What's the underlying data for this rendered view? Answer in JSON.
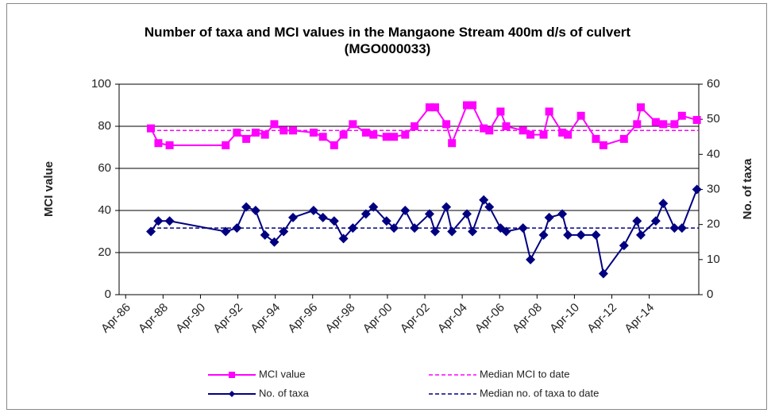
{
  "chart_data": {
    "type": "line",
    "title": "Number of taxa and MCI values in the Mangaone Stream 400m d/s of culvert (MGO000033)",
    "y_label": "MCI value",
    "y2_label": "No. of taxa",
    "x": [
      1987.6,
      1988.0,
      1988.6,
      1991.6,
      1992.2,
      1992.7,
      1993.2,
      1993.7,
      1994.2,
      1994.7,
      1995.2,
      1996.3,
      1996.8,
      1997.4,
      1997.9,
      1998.4,
      1999.1,
      1999.5,
      2000.2,
      2000.6,
      2001.2,
      2001.7,
      2002.5,
      2002.8,
      2003.4,
      2003.7,
      2004.5,
      2004.8,
      2005.4,
      2005.7,
      2006.3,
      2006.6,
      2007.5,
      2007.9,
      2008.6,
      2008.9,
      2009.6,
      2009.9,
      2010.6,
      2011.4,
      2011.8,
      2012.9,
      2013.6,
      2013.8,
      2014.6,
      2015.0,
      2015.6,
      2016.0,
      2016.8
    ],
    "series": [
      {
        "name": "MCI value",
        "color": "#ff00ff",
        "marker": "square",
        "axis": "y",
        "values": [
          79,
          72,
          71,
          71,
          77,
          74,
          77,
          76,
          81,
          78,
          78,
          77,
          75,
          71,
          76,
          81,
          77,
          76,
          75,
          75,
          76,
          80,
          89,
          89,
          81,
          72,
          90,
          90,
          79,
          78,
          87,
          80,
          78,
          76,
          76,
          87,
          77,
          76,
          85,
          74,
          71,
          74,
          81,
          89,
          82,
          81,
          81,
          85,
          83
        ]
      },
      {
        "name": "No. of taxa",
        "color": "#000080",
        "marker": "diamond",
        "axis": "y2",
        "values": [
          18,
          21,
          21,
          18,
          19,
          25,
          24,
          17,
          15,
          18,
          22,
          24,
          22,
          21,
          16,
          19,
          23,
          25,
          21,
          19,
          24,
          19,
          23,
          18,
          25,
          18,
          23,
          18,
          27,
          25,
          19,
          18,
          19,
          10,
          17,
          22,
          23,
          17,
          17,
          17,
          6,
          14,
          21,
          17,
          21,
          26,
          19,
          19,
          30
        ]
      }
    ],
    "reference_lines": [
      {
        "name": "Median MCI to date",
        "color": "#ff00ff",
        "value": 78,
        "axis": "y"
      },
      {
        "name": "Median no. of taxa to date",
        "color": "#000080",
        "value": 19,
        "axis": "y2"
      }
    ],
    "xlim": [
      1985.9,
      2016.9
    ],
    "xticks": [
      {
        "value": 1986.25,
        "label": "Apr-86"
      },
      {
        "value": 1988.25,
        "label": "Apr-88"
      },
      {
        "value": 1990.25,
        "label": "Apr-90"
      },
      {
        "value": 1992.25,
        "label": "Apr-92"
      },
      {
        "value": 1994.25,
        "label": "Apr-94"
      },
      {
        "value": 1996.25,
        "label": "Apr-96"
      },
      {
        "value": 1998.25,
        "label": "Apr-98"
      },
      {
        "value": 2000.25,
        "label": "Apr-00"
      },
      {
        "value": 2002.25,
        "label": "Apr-02"
      },
      {
        "value": 2004.25,
        "label": "Apr-04"
      },
      {
        "value": 2006.25,
        "label": "Apr-06"
      },
      {
        "value": 2008.25,
        "label": "Apr-08"
      },
      {
        "value": 2010.25,
        "label": "Apr-10"
      },
      {
        "value": 2012.25,
        "label": "Apr-12"
      },
      {
        "value": 2014.25,
        "label": "Apr-14"
      }
    ],
    "ylim": [
      0,
      100
    ],
    "yticks": [
      0,
      20,
      40,
      60,
      80,
      100
    ],
    "y2lim": [
      0,
      60
    ],
    "y2ticks": [
      0,
      10,
      20,
      30,
      40,
      50,
      60
    ],
    "grid": true,
    "legend": "bottom"
  }
}
